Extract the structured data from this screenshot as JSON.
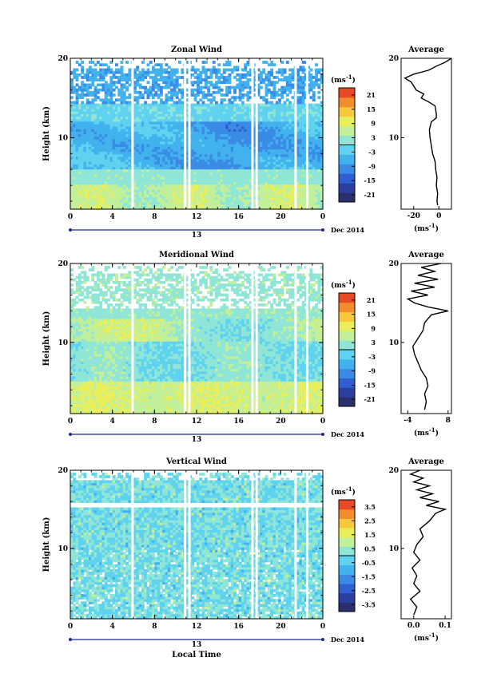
{
  "chart_data": [
    {
      "type": "heatmap",
      "title": "Zonal Wind",
      "ylabel": "Height (km)",
      "y_ticks": [
        "10",
        "20"
      ],
      "ylim": [
        1,
        20
      ],
      "x_ticks": [
        "0",
        "4",
        "8",
        "12",
        "16",
        "20",
        "0"
      ],
      "xlim": [
        0,
        24
      ],
      "date_label": "13",
      "date_suffix": "Dec 2014",
      "colorbar": {
        "unit_base": "(ms",
        "unit_exp": "-1",
        "unit_close": ")",
        "ticks": [
          "21",
          "15",
          "9",
          "3",
          "-3",
          "-9",
          "-15",
          "-21"
        ],
        "range": [
          -24,
          24
        ]
      },
      "average": {
        "title": "Average",
        "x_ticks": [
          "-20",
          "0"
        ],
        "xlim": [
          -30,
          10
        ],
        "y_ticks": [
          "10",
          "20"
        ],
        "xlabel_base": "(ms",
        "xlabel_exp": "-1",
        "xlabel_close": ")",
        "profile": [
          [
            1.5,
            -1
          ],
          [
            2,
            -1.5
          ],
          [
            3,
            -1
          ],
          [
            4,
            -2
          ],
          [
            5,
            -1.5
          ],
          [
            6,
            -2.5
          ],
          [
            7,
            -3
          ],
          [
            8,
            -5
          ],
          [
            9,
            -6
          ],
          [
            10,
            -7
          ],
          [
            11,
            -7.5
          ],
          [
            12,
            -6
          ],
          [
            12.5,
            -2
          ],
          [
            13,
            -2
          ],
          [
            14,
            -3
          ],
          [
            14.5,
            -8
          ],
          [
            15,
            -14
          ],
          [
            15.5,
            -12
          ],
          [
            16,
            -18
          ],
          [
            17,
            -22
          ],
          [
            17.5,
            -27
          ],
          [
            18,
            -20
          ],
          [
            18.5,
            -8
          ],
          [
            19,
            -2
          ],
          [
            19.5,
            5
          ],
          [
            20,
            10
          ]
        ]
      },
      "gaps_hours": [
        5.8,
        10.8,
        11.2,
        17.2,
        17.6,
        21.3,
        22.4
      ]
    },
    {
      "type": "heatmap",
      "title": "Meridional Wind",
      "ylabel": "Height (km)",
      "y_ticks": [
        "10",
        "20"
      ],
      "ylim": [
        1,
        20
      ],
      "x_ticks": [
        "0",
        "4",
        "8",
        "12",
        "16",
        "20",
        "0"
      ],
      "xlim": [
        0,
        24
      ],
      "date_label": "13",
      "date_suffix": "Dec 2014",
      "colorbar": {
        "unit_base": "(ms",
        "unit_exp": "-1",
        "unit_close": ")",
        "ticks": [
          "21",
          "15",
          "9",
          "3",
          "-3",
          "-9",
          "-15",
          "-21"
        ],
        "range": [
          -24,
          24
        ]
      },
      "average": {
        "title": "Average",
        "x_ticks": [
          "-4",
          "8"
        ],
        "xlim": [
          -6,
          9
        ],
        "y_ticks": [
          "10",
          "20"
        ],
        "xlabel_base": "(ms",
        "xlabel_exp": "-1",
        "xlabel_close": ")",
        "profile": [
          [
            1.5,
            1
          ],
          [
            2.5,
            1.5
          ],
          [
            3.5,
            1
          ],
          [
            4.5,
            2
          ],
          [
            5.5,
            1.5
          ],
          [
            6.5,
            0
          ],
          [
            7.5,
            -1
          ],
          [
            8.5,
            -2
          ],
          [
            9.5,
            -2.5
          ],
          [
            10.5,
            -1
          ],
          [
            11.5,
            0.5
          ],
          [
            12.5,
            1
          ],
          [
            13.5,
            3
          ],
          [
            14,
            8
          ],
          [
            14.5,
            2
          ],
          [
            15,
            -2
          ],
          [
            15.5,
            -4
          ],
          [
            16,
            2
          ],
          [
            16.5,
            -3
          ],
          [
            17,
            4
          ],
          [
            17.5,
            -2
          ],
          [
            18,
            5
          ],
          [
            18.5,
            -1
          ],
          [
            19,
            4
          ],
          [
            19.5,
            0
          ],
          [
            20,
            6
          ]
        ]
      },
      "gaps_hours": [
        5.8,
        10.8,
        11.2,
        17.2,
        17.6,
        21.3,
        22.4
      ]
    },
    {
      "type": "heatmap",
      "title": "Vertical Wind",
      "ylabel": "Height (km)",
      "y_ticks": [
        "10",
        "20"
      ],
      "ylim": [
        1,
        20
      ],
      "x_ticks": [
        "0",
        "4",
        "8",
        "12",
        "16",
        "20",
        "0"
      ],
      "xlim": [
        0,
        24
      ],
      "date_label": "13",
      "date_suffix": "Dec 2014",
      "xlabel": "Local Time",
      "colorbar": {
        "unit_base": "(ms",
        "unit_exp": "-1",
        "unit_close": ")",
        "ticks": [
          "3.5",
          "2.5",
          "1.5",
          "0.5",
          "-0.5",
          "-1.5",
          "-2.5",
          "-3.5"
        ],
        "range": [
          -4,
          4
        ]
      },
      "average": {
        "title": "Average",
        "x_ticks": [
          "0.0",
          "0.1"
        ],
        "xlim": [
          -0.04,
          0.12
        ],
        "y_ticks": [
          "10",
          "20"
        ],
        "xlabel_base": "(ms",
        "xlabel_exp": "-1",
        "xlabel_close": ")",
        "profile": [
          [
            1.5,
            0.0
          ],
          [
            2.5,
            0.01
          ],
          [
            3.5,
            -0.01
          ],
          [
            4.5,
            0.02
          ],
          [
            5.5,
            0.0
          ],
          [
            6.5,
            0.01
          ],
          [
            7.5,
            -0.005
          ],
          [
            8.5,
            0.02
          ],
          [
            9.5,
            0.0
          ],
          [
            10.5,
            0.01
          ],
          [
            11.5,
            0.03
          ],
          [
            12.5,
            0.02
          ],
          [
            13.5,
            0.05
          ],
          [
            14.5,
            0.07
          ],
          [
            15,
            0.1
          ],
          [
            15.5,
            0.04
          ],
          [
            16,
            0.08
          ],
          [
            16.5,
            0.02
          ],
          [
            17,
            0.06
          ],
          [
            17.5,
            0.01
          ],
          [
            18,
            0.05
          ],
          [
            18.5,
            0.0
          ],
          [
            19,
            0.03
          ],
          [
            19.5,
            -0.01
          ],
          [
            20,
            0.02
          ]
        ]
      },
      "gaps_hours": [
        5.8,
        10.8,
        11.2,
        17.2,
        17.6,
        21.3,
        22.4
      ]
    }
  ],
  "colors": {
    "scale": [
      "#2b2f6e",
      "#2a3fa0",
      "#2f5fd0",
      "#3a8be6",
      "#41b2ee",
      "#5fd2f0",
      "#8fe6d6",
      "#c2ef9a",
      "#e8ef5a",
      "#f7c83c",
      "#f28c2c",
      "#e84a26"
    ]
  }
}
